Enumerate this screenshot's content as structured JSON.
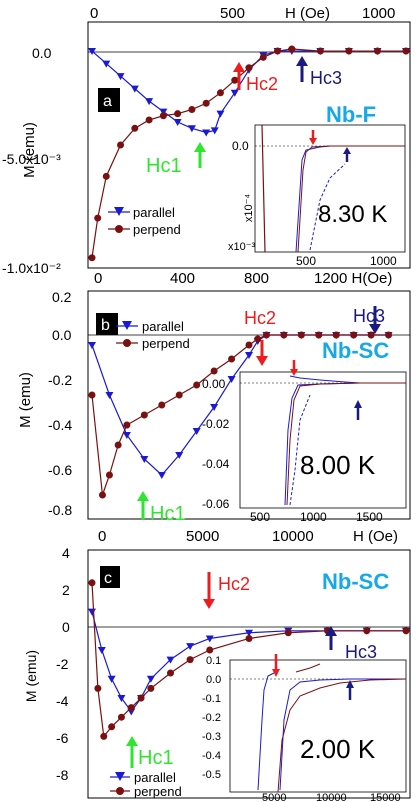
{
  "chart_data": [
    {
      "panel_letter": "a",
      "type": "scatter",
      "material": "Nb-F",
      "temperature": "8.30 K",
      "x_top_ticks": [
        "0",
        "500",
        "H (Oe)",
        "1000"
      ],
      "x_bottom_ticks": [
        "0",
        "400",
        "800",
        "1200 H(Oe)"
      ],
      "ylabel": "M (emu)",
      "yticks": [
        "0.0",
        "-5.0x10⁻³",
        "-1.0x10⁻²"
      ],
      "xlim": [
        0,
        1100
      ],
      "ylim": [
        -0.0102,
        0.0012
      ],
      "annotations": {
        "hc1": "Hc1",
        "hc2": "Hc2",
        "hc3": "Hc3"
      },
      "legend": [
        "parallel",
        "perpend"
      ],
      "series": [
        {
          "name": "parallel",
          "x": [
            0,
            50,
            100,
            150,
            200,
            250,
            300,
            350,
            400,
            430,
            450,
            500,
            550,
            600,
            650,
            700,
            800,
            900,
            1000,
            1100
          ],
          "y": [
            0.0,
            -0.0006,
            -0.0012,
            -0.0018,
            -0.0024,
            -0.0029,
            -0.0034,
            -0.0037,
            -0.0039,
            -0.0038,
            -0.003,
            -0.002,
            -0.0009,
            -0.0002,
            0.0,
            0.0,
            0.0,
            0.0,
            0.0,
            0.0
          ]
        },
        {
          "name": "perpend",
          "x": [
            0,
            20,
            50,
            100,
            150,
            200,
            250,
            300,
            350,
            400,
            450,
            500,
            550,
            600,
            650,
            700,
            800,
            900,
            1000,
            1100
          ],
          "y": [
            -0.0099,
            -0.008,
            -0.006,
            -0.0045,
            -0.0037,
            -0.0033,
            -0.0031,
            -0.003,
            -0.0028,
            -0.0025,
            -0.002,
            -0.0014,
            -0.0008,
            -0.0003,
            0.0,
            0.0001,
            0.0,
            0.0,
            0.0,
            0.0
          ]
        }
      ],
      "inset": {
        "yticks": [
          "0.0",
          "x10⁻⁴",
          "x10⁻³"
        ],
        "xticks": [
          "500",
          "1000"
        ]
      }
    },
    {
      "panel_letter": "b",
      "type": "scatter",
      "material": "Nb-SC",
      "temperature": "8.00 K",
      "ylabel": "M (emu)",
      "yticks": [
        "0.2",
        "0.0",
        "-0.2",
        "-0.4",
        "-0.6",
        "-0.8"
      ],
      "xlim": [
        0,
        1800
      ],
      "ylim": [
        -0.9,
        0.2
      ],
      "annotations": {
        "hc1": "Hc1",
        "hc2": "Hc2",
        "hc3": "Hc3"
      },
      "legend": [
        "parallel",
        "perpend"
      ],
      "series": [
        {
          "name": "parallel",
          "x": [
            0,
            100,
            200,
            300,
            400,
            500,
            600,
            700,
            800,
            900,
            950,
            1000,
            1100,
            1200,
            1300,
            1400,
            1500,
            1600,
            1700
          ],
          "y": [
            -0.05,
            -0.3,
            -0.5,
            -0.62,
            -0.7,
            -0.6,
            -0.48,
            -0.36,
            -0.22,
            -0.1,
            -0.03,
            0.0,
            0.0,
            0.0,
            0.0,
            0.0,
            0.0,
            0.0,
            0.0
          ]
        },
        {
          "name": "perpend",
          "x": [
            0,
            60,
            100,
            150,
            200,
            300,
            400,
            500,
            600,
            700,
            800,
            900,
            950,
            1000,
            1100,
            1200,
            1300,
            1400,
            1500,
            1600,
            1700
          ],
          "y": [
            -0.3,
            -0.8,
            -0.7,
            -0.55,
            -0.45,
            -0.4,
            -0.35,
            -0.3,
            -0.25,
            -0.18,
            -0.12,
            -0.05,
            -0.02,
            0.0,
            0.0,
            0.0,
            0.0,
            0.0,
            0.0,
            0.0,
            0.0
          ]
        }
      ],
      "inset": {
        "yticks": [
          "0.00",
          "-0.02",
          "-0.04",
          "-0.06"
        ],
        "xticks": [
          "500",
          "1000",
          "1500"
        ]
      }
    },
    {
      "panel_letter": "c",
      "type": "scatter",
      "material": "Nb-SC",
      "temperature": "2.00 K",
      "x_top_ticks": [
        "0",
        "5000",
        "10000",
        "H (Oe)"
      ],
      "ylabel": "M (emu)",
      "yticks": [
        "4",
        "2",
        "0",
        "-2",
        "-4",
        "-6",
        "-8"
      ],
      "xlim": [
        0,
        16000
      ],
      "ylim": [
        -8.5,
        4
      ],
      "annotations": {
        "hc1": "Hc1",
        "hc2": "Hc2",
        "hc3": "Hc3"
      },
      "legend": [
        "parallel",
        "perpend"
      ],
      "series": [
        {
          "name": "parallel",
          "x": [
            0,
            500,
            1000,
            1500,
            2000,
            2500,
            3000,
            4000,
            5000,
            6000,
            8000,
            10000,
            12000,
            14000,
            16000
          ],
          "y": [
            1.0,
            -1.0,
            -2.5,
            -3.5,
            -4.2,
            -3.5,
            -2.5,
            -1.5,
            -0.8,
            -0.4,
            -0.1,
            0.0,
            0.0,
            0.0,
            0.0
          ]
        },
        {
          "name": "perpend",
          "x": [
            0,
            300,
            600,
            1000,
            1500,
            2000,
            2500,
            3000,
            4000,
            5000,
            6000,
            8000,
            10000,
            12000,
            14000,
            16000
          ],
          "y": [
            2.5,
            -3.0,
            -5.5,
            -5.0,
            -4.5,
            -4.0,
            -3.5,
            -3.0,
            -2.2,
            -1.5,
            -1.0,
            -0.4,
            -0.1,
            0.0,
            0.0,
            0.0
          ]
        }
      ],
      "inset": {
        "yticks": [
          "0.1",
          "0.0",
          "-0.1",
          "-0.2",
          "-0.3",
          "-0.4",
          "-0.5"
        ],
        "xticks": [
          "5000",
          "10000",
          "15000"
        ]
      }
    }
  ],
  "colors": {
    "parallel": "#1a1ad6",
    "perpend": "#7a1010",
    "hc1": "#2ee62e",
    "hc2": "#ee1c1c",
    "hc3": "#1a1a80",
    "material": "#16a8e8"
  }
}
